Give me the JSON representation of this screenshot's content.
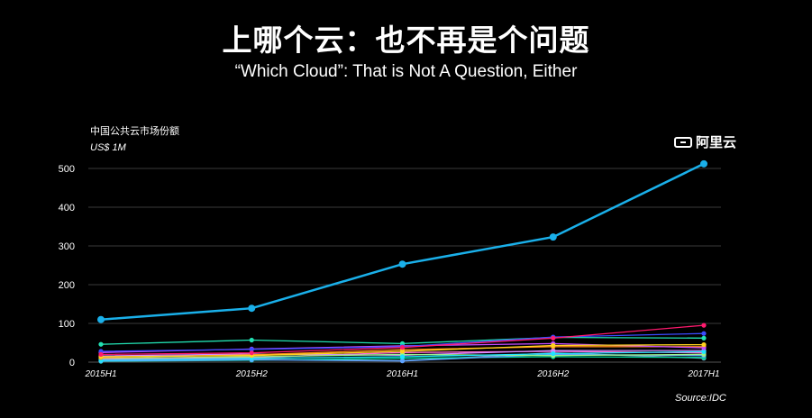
{
  "header": {
    "title_cn": "上哪个云：也不再是个问题",
    "title_en": "“Which Cloud”: That is Not A Question, Either"
  },
  "logo": {
    "text": "阿里云"
  },
  "source": "Source:IDC",
  "colors": {
    "background": "#000000",
    "primary_series": "#1ab0ea"
  },
  "chart_data": {
    "type": "line",
    "title": "中国公共云市场份额",
    "subtitle": "US$ 1M",
    "categories": [
      "2015H1",
      "2015H2",
      "2016H1",
      "2016H2",
      "2017H1"
    ],
    "ylim": [
      0,
      500
    ],
    "yticks": [
      0,
      100,
      200,
      300,
      400,
      500
    ],
    "grid": true,
    "series": [
      {
        "color": "#1ab0ea",
        "values": [
          110,
          139,
          253,
          323,
          512
        ]
      },
      {
        "color": "#ff1a6e",
        "values": [
          20,
          24,
          38,
          62,
          95
        ]
      },
      {
        "color": "#3b4bff",
        "values": [
          28,
          33,
          40,
          65,
          74
        ]
      },
      {
        "color": "#22e0b2",
        "values": [
          46,
          57,
          48,
          64,
          62
        ]
      },
      {
        "color": "#ffd21e",
        "values": [
          14,
          17,
          28,
          43,
          45
        ]
      },
      {
        "color": "#c44bff",
        "values": [
          25,
          34,
          42,
          48,
          37
        ]
      },
      {
        "color": "#ff8a1e",
        "values": [
          12,
          19,
          32,
          40,
          40
        ]
      },
      {
        "color": "#1ee6ff",
        "values": [
          5,
          10,
          14,
          22,
          27
        ]
      },
      {
        "color": "#9bf28a",
        "values": [
          10,
          14,
          20,
          17,
          20
        ]
      },
      {
        "color": "#d08cff",
        "values": [
          16,
          21,
          18,
          30,
          30
        ]
      },
      {
        "color": "#5ea2ff",
        "values": [
          3,
          6,
          3,
          20,
          17
        ]
      },
      {
        "color": "#ff6ad5",
        "values": [
          8,
          12,
          25,
          28,
          24
        ]
      },
      {
        "color": "#00d49a",
        "values": [
          2,
          5,
          10,
          14,
          12
        ]
      },
      {
        "color": "#7aa0c8",
        "values": [
          6,
          8,
          4,
          24,
          10
        ]
      }
    ]
  }
}
